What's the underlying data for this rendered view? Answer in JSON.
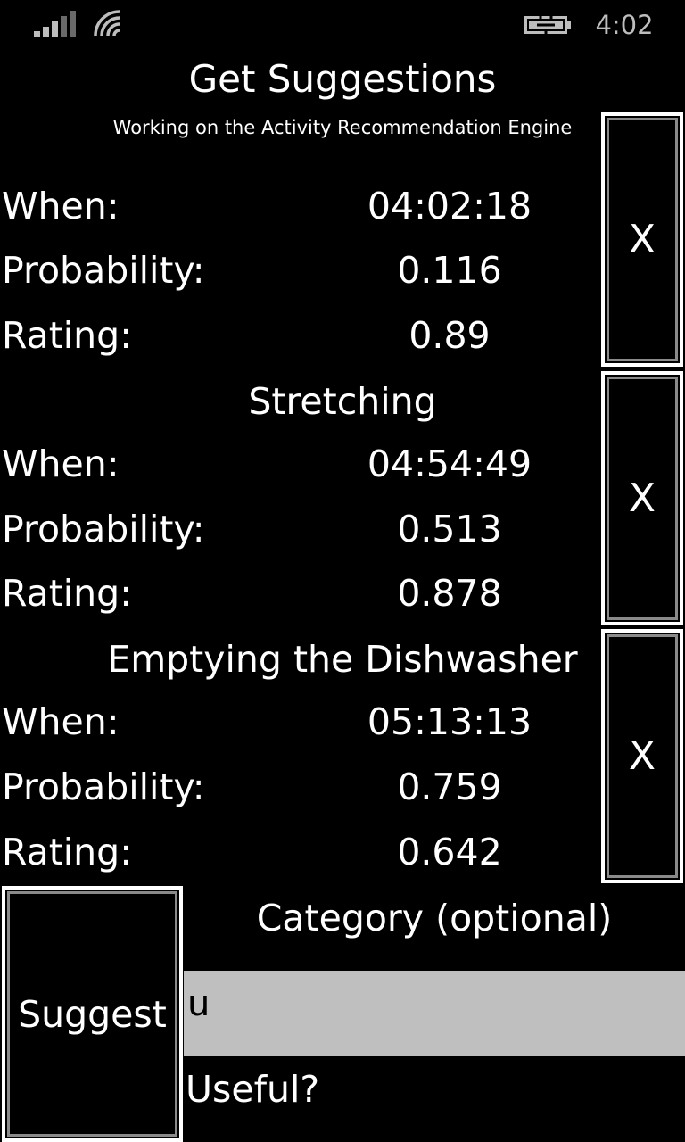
{
  "status_bar": {
    "time": "4:02",
    "icons": [
      "signal-strength-icon",
      "wifi-icon",
      "battery-charging-icon"
    ]
  },
  "header": {
    "title": "Get Suggestions",
    "subtitle": "Working on the Activity Recommendation Engine"
  },
  "labels": {
    "when": "When:",
    "probability": "Probability:",
    "rating": "Rating:"
  },
  "suggestions": [
    {
      "name": "",
      "when": "04:02:18",
      "probability": "0.116",
      "rating": "0.89",
      "dismiss_label": "X"
    },
    {
      "name": "Stretching",
      "when": "04:54:49",
      "probability": "0.513",
      "rating": "0.878",
      "dismiss_label": "X"
    },
    {
      "name": "Emptying the Dishwasher",
      "when": "05:13:13",
      "probability": "0.759",
      "rating": "0.642",
      "dismiss_label": "X"
    }
  ],
  "form": {
    "suggest_button": "Suggest",
    "category_label": "Category (optional)",
    "category_value": "u",
    "useful_label": "Useful?"
  },
  "colors": {
    "background": "#000000",
    "foreground": "#ffffff",
    "input_background": "#bfbfbf",
    "status_gray": "#bdbdbd"
  }
}
